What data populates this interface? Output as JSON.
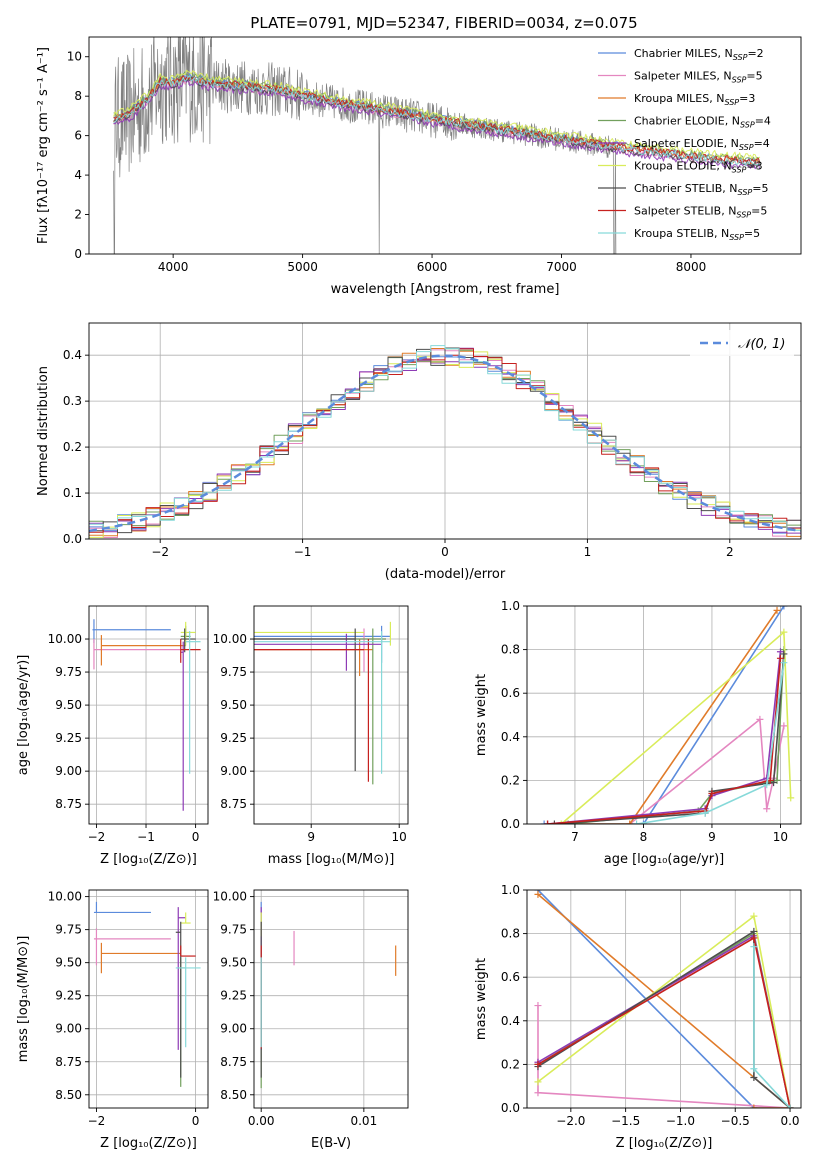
{
  "colors": [
    "#5b8bdc",
    "#e487c0",
    "#e07b2a",
    "#72a05d",
    "#8e3bb5",
    "#d9ec5a",
    "#4e4e4e",
    "#c6211f",
    "#86d9d9"
  ],
  "chart_data": [
    {
      "id": "spectrum",
      "type": "line",
      "title": "PLATE=0791, MJD=52347, FIBERID=0034, z=0.075",
      "xlabel": "wavelength [Angstrom, rest frame]",
      "ylabel": "Flux [fλ10⁻¹⁷ erg cm⁻² s⁻¹ A⁻¹]",
      "xlim": [
        3350,
        8850
      ],
      "ylim": [
        0,
        11
      ],
      "xticks": [
        4000,
        5000,
        6000,
        7000,
        8000
      ],
      "yticks": [
        0,
        2,
        4,
        6,
        8,
        10
      ],
      "grid": false,
      "legend_position": "top-right",
      "legend": [
        {
          "label": "Chabrier MILES, N",
          "sub": "SSP",
          "suffix": "=2"
        },
        {
          "label": "Salpeter MILES, N",
          "sub": "SSP",
          "suffix": "=5"
        },
        {
          "label": "Kroupa MILES, N",
          "sub": "SSP",
          "suffix": "=3"
        },
        {
          "label": "Chabrier ELODIE, N",
          "sub": "SSP",
          "suffix": "=4"
        },
        {
          "label": "Salpeter ELODIE, N",
          "sub": "SSP",
          "suffix": "=4"
        },
        {
          "label": "Kroupa ELODIE, N",
          "sub": "SSP",
          "suffix": "=3"
        },
        {
          "label": "Chabrier STELIB, N",
          "sub": "SSP",
          "suffix": "=5"
        },
        {
          "label": "Salpeter STELIB, N",
          "sub": "SSP",
          "suffix": "=5"
        },
        {
          "label": "Kroupa STELIB, N",
          "sub": "SSP",
          "suffix": "=5"
        }
      ],
      "continuum": {
        "x": [
          3540,
          3650,
          3800,
          3900,
          4000,
          4100,
          4300,
          4500,
          4800,
          5000,
          5300,
          5600,
          6000,
          6500,
          7000,
          7500,
          8000,
          8500
        ],
        "y": [
          6.8,
          7.0,
          7.8,
          8.7,
          8.6,
          8.9,
          8.6,
          8.5,
          8.3,
          8.0,
          7.6,
          7.3,
          6.8,
          6.3,
          5.8,
          5.3,
          4.9,
          4.6
        ]
      }
    },
    {
      "id": "residuals",
      "type": "line",
      "xlabel": "(data-model)/error",
      "ylabel": "Normed distribution",
      "xlim": [
        -2.5,
        2.5
      ],
      "ylim": [
        0,
        0.47
      ],
      "xticks": [
        -2,
        -1,
        0,
        1,
        2
      ],
      "yticks": [
        0.0,
        0.1,
        0.2,
        0.3,
        0.4
      ],
      "grid": true,
      "legend_position": "top-right",
      "legend": [
        "𝒩(0, 1)"
      ],
      "bin_width": 0.1
    },
    {
      "id": "age-vs-z",
      "type": "scatter",
      "xlabel": "Z [log₁₀(Z/Z⊙)]",
      "ylabel": "age  [log₁₀(age/yr)]",
      "xlim": [
        -2.15,
        0.25
      ],
      "ylim": [
        8.6,
        10.25
      ],
      "xticks": [
        -2,
        -1,
        0
      ],
      "yticks": [
        8.75,
        9.0,
        9.25,
        9.5,
        9.75,
        10.0
      ],
      "grid": true
    },
    {
      "id": "age-vs-mass",
      "type": "scatter",
      "xlabel": "mass [log₁₀(M/M⊙)]",
      "ylabel": "",
      "xlim": [
        8.35,
        10.1
      ],
      "ylim": [
        8.6,
        10.25
      ],
      "xticks": [
        9,
        10
      ],
      "yticks": [
        8.75,
        9.0,
        9.25,
        9.5,
        9.75,
        10.0
      ],
      "grid": true
    },
    {
      "id": "weight-vs-age",
      "type": "line",
      "xlabel": "age  [log₁₀(age/yr)]",
      "ylabel": "mass weight",
      "xlim": [
        6.3,
        10.3
      ],
      "ylim": [
        0,
        1
      ],
      "xticks": [
        7,
        8,
        9,
        10
      ],
      "yticks": [
        0.0,
        0.2,
        0.4,
        0.6,
        0.8,
        1.0
      ],
      "grid": true,
      "series": [
        {
          "x": [
            6.55,
            8.0,
            10.05
          ],
          "y": [
            0.0,
            0.0,
            1.0
          ]
        },
        {
          "x": [
            7.8,
            9.7,
            9.8,
            9.9,
            10.05
          ],
          "y": [
            0.0,
            0.48,
            0.07,
            0.21,
            0.45
          ]
        },
        {
          "x": [
            6.6,
            7.8,
            9.95
          ],
          "y": [
            0.0,
            0.0,
            0.98
          ]
        },
        {
          "x": [
            6.9,
            8.8,
            9.0,
            9.95,
            10.05
          ],
          "y": [
            0.0,
            0.06,
            0.14,
            0.2,
            0.8
          ]
        },
        {
          "x": [
            6.6,
            8.9,
            9.0,
            9.8,
            10.0
          ],
          "y": [
            0.0,
            0.07,
            0.13,
            0.21,
            0.79
          ]
        },
        {
          "x": [
            6.8,
            10.05,
            10.15
          ],
          "y": [
            0.0,
            0.88,
            0.12
          ]
        },
        {
          "x": [
            6.7,
            8.9,
            9.0,
            9.9,
            10.05
          ],
          "y": [
            0.0,
            0.05,
            0.15,
            0.19,
            0.78
          ]
        },
        {
          "x": [
            6.6,
            8.9,
            9.0,
            9.85,
            10.0
          ],
          "y": [
            0.0,
            0.06,
            0.14,
            0.2,
            0.76
          ]
        },
        {
          "x": [
            7.9,
            8.9,
            9.8,
            10.05
          ],
          "y": [
            0.0,
            0.05,
            0.18,
            0.74
          ]
        }
      ]
    },
    {
      "id": "mass-vs-z",
      "type": "scatter",
      "xlabel": "Z [log₁₀(Z/Z⊙)]",
      "ylabel": "mass [log₁₀(M/M⊙)]",
      "xlim": [
        -2.15,
        0.25
      ],
      "ylim": [
        8.4,
        10.05
      ],
      "xticks": [
        -2,
        0
      ],
      "yticks": [
        8.5,
        8.75,
        9.0,
        9.25,
        9.5,
        9.75,
        10.0
      ],
      "grid": true
    },
    {
      "id": "mass-vs-ebv",
      "type": "scatter",
      "xlabel": "E(B-V)",
      "ylabel": "",
      "xlim": [
        -0.0007,
        0.0143
      ],
      "ylim": [
        8.4,
        10.05
      ],
      "xticks": [
        0.0,
        0.01
      ],
      "yticks": [
        8.5,
        8.75,
        9.0,
        9.25,
        9.5,
        9.75,
        10.0
      ],
      "grid": true
    },
    {
      "id": "weight-vs-z",
      "type": "line",
      "xlabel": "Z [log₁₀(Z/Z⊙)]",
      "ylabel": "mass weight",
      "xlim": [
        -2.4,
        0.1
      ],
      "ylim": [
        0,
        1
      ],
      "xticks": [
        -2.0,
        -1.5,
        -1.0,
        -0.5,
        0.0
      ],
      "yticks": [
        0.0,
        0.2,
        0.4,
        0.6,
        0.8,
        1.0
      ],
      "grid": true,
      "series": [
        {
          "x": [
            -2.3,
            -0.33,
            0.0
          ],
          "y": [
            1.0,
            0.0,
            0.0
          ]
        },
        {
          "x": [
            -2.3,
            -2.3,
            0.0
          ],
          "y": [
            0.47,
            0.07,
            0.0
          ]
        },
        {
          "x": [
            -2.3,
            0.0,
            -0.33
          ],
          "y": [
            0.98,
            0.0,
            0.0
          ]
        },
        {
          "x": [
            -2.3,
            -0.33,
            0.0
          ],
          "y": [
            0.2,
            0.8,
            0.0
          ]
        },
        {
          "x": [
            -2.3,
            -0.33,
            0.0
          ],
          "y": [
            0.21,
            0.79,
            0.0
          ]
        },
        {
          "x": [
            -2.3,
            -0.33,
            0.0
          ],
          "y": [
            0.12,
            0.88,
            0.0
          ]
        },
        {
          "x": [
            -2.3,
            -0.33,
            -0.33,
            0.0
          ],
          "y": [
            0.19,
            0.81,
            0.14,
            0.0
          ]
        },
        {
          "x": [
            -2.3,
            -0.33,
            0.0
          ],
          "y": [
            0.2,
            0.78,
            0.0
          ]
        },
        {
          "x": [
            -0.33,
            -0.33,
            0.0
          ],
          "y": [
            0.74,
            0.18,
            0.0
          ]
        }
      ]
    }
  ]
}
